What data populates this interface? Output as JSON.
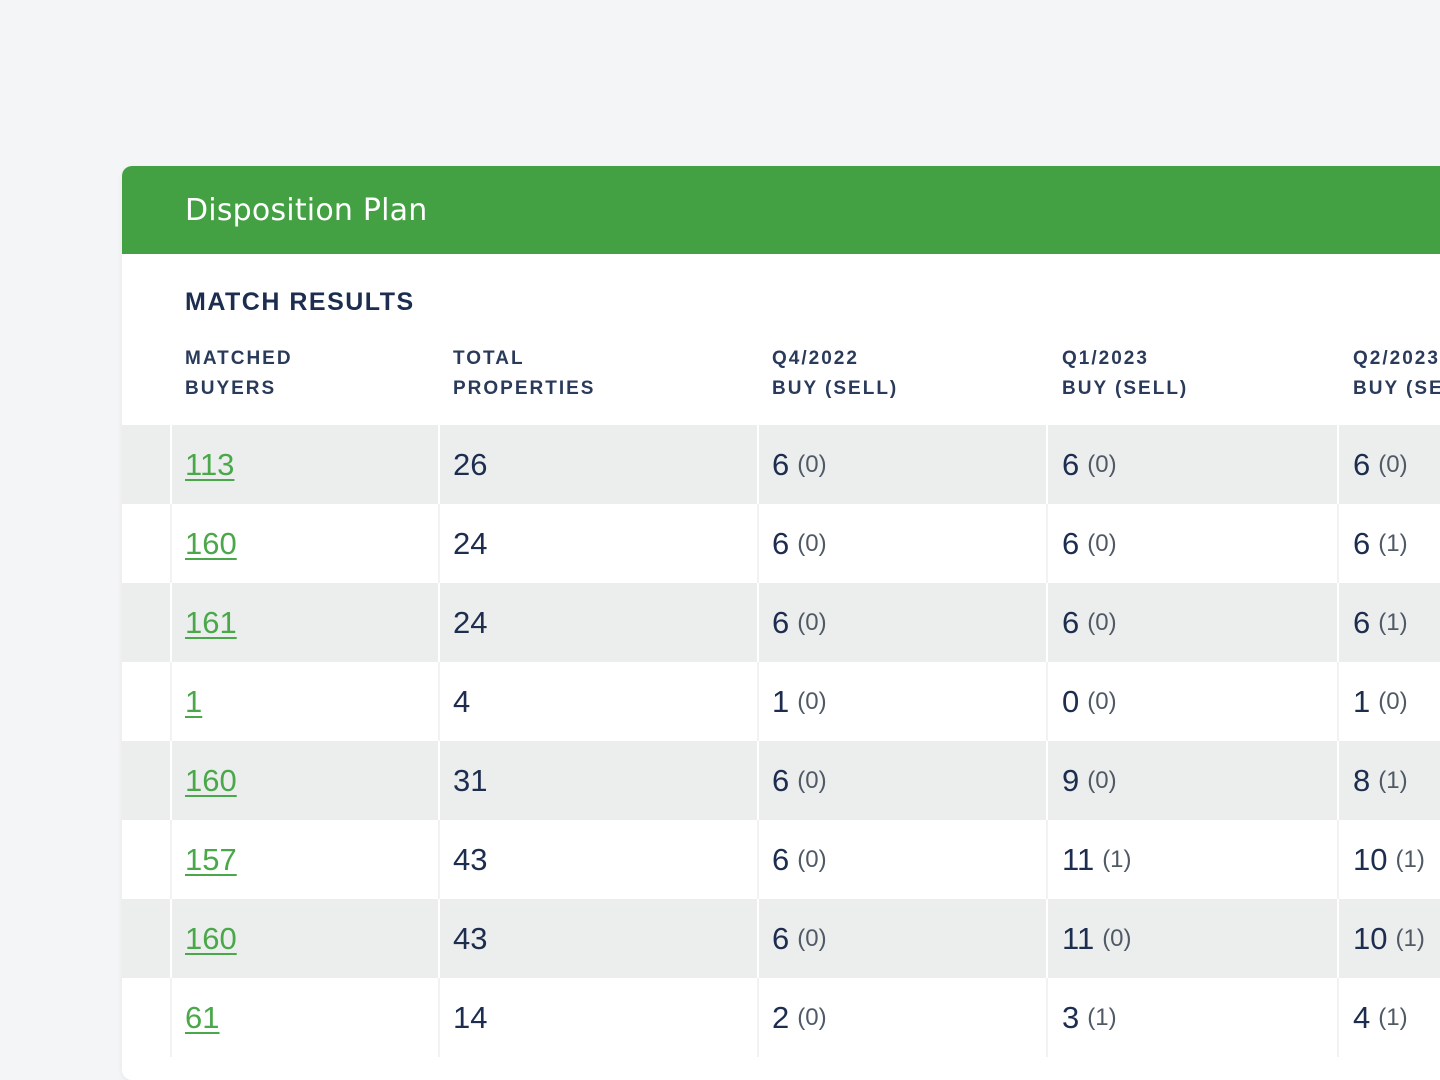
{
  "panel": {
    "title": "Disposition Plan"
  },
  "section": {
    "title": "MATCH RESULTS"
  },
  "columns": [
    {
      "line1": "MATCHED",
      "line2": "BUYERS"
    },
    {
      "line1": "TOTAL",
      "line2": "PROPERTIES"
    },
    {
      "line1": "Q4/2022",
      "line2": "BUY (SELL)"
    },
    {
      "line1": "Q1/2023",
      "line2": "BUY (SELL)"
    },
    {
      "line1": "Q2/2023",
      "line2": "BUY (SELL)"
    }
  ],
  "rows": [
    {
      "buyers": "113",
      "total": "26",
      "q4_2022": {
        "buy": "6",
        "sell": "(0)"
      },
      "q1_2023": {
        "buy": "6",
        "sell": "(0)"
      },
      "q2_2023": {
        "buy": "6",
        "sell": "(0)"
      }
    },
    {
      "buyers": "160",
      "total": "24",
      "q4_2022": {
        "buy": "6",
        "sell": "(0)"
      },
      "q1_2023": {
        "buy": "6",
        "sell": "(0)"
      },
      "q2_2023": {
        "buy": "6",
        "sell": "(1)"
      }
    },
    {
      "buyers": "161",
      "total": "24",
      "q4_2022": {
        "buy": "6",
        "sell": "(0)"
      },
      "q1_2023": {
        "buy": "6",
        "sell": "(0)"
      },
      "q2_2023": {
        "buy": "6",
        "sell": "(1)"
      }
    },
    {
      "buyers": "1",
      "total": "4",
      "q4_2022": {
        "buy": "1",
        "sell": "(0)"
      },
      "q1_2023": {
        "buy": "0",
        "sell": "(0)"
      },
      "q2_2023": {
        "buy": "1",
        "sell": "(0)"
      }
    },
    {
      "buyers": "160",
      "total": "31",
      "q4_2022": {
        "buy": "6",
        "sell": "(0)"
      },
      "q1_2023": {
        "buy": "9",
        "sell": "(0)"
      },
      "q2_2023": {
        "buy": "8",
        "sell": "(1)"
      }
    },
    {
      "buyers": "157",
      "total": "43",
      "q4_2022": {
        "buy": "6",
        "sell": "(0)"
      },
      "q1_2023": {
        "buy": "11",
        "sell": "(1)"
      },
      "q2_2023": {
        "buy": "10",
        "sell": "(1)"
      }
    },
    {
      "buyers": "160",
      "total": "43",
      "q4_2022": {
        "buy": "6",
        "sell": "(0)"
      },
      "q1_2023": {
        "buy": "11",
        "sell": "(0)"
      },
      "q2_2023": {
        "buy": "10",
        "sell": "(1)"
      }
    },
    {
      "buyers": "61",
      "total": "14",
      "q4_2022": {
        "buy": "2",
        "sell": "(0)"
      },
      "q1_2023": {
        "buy": "3",
        "sell": "(1)"
      },
      "q2_2023": {
        "buy": "4",
        "sell": "(1)"
      }
    }
  ],
  "colors": {
    "header_green": "#43a143",
    "link_green": "#4aa84a",
    "text_navy": "#1c2d4f",
    "row_shade": "#eceeed"
  }
}
